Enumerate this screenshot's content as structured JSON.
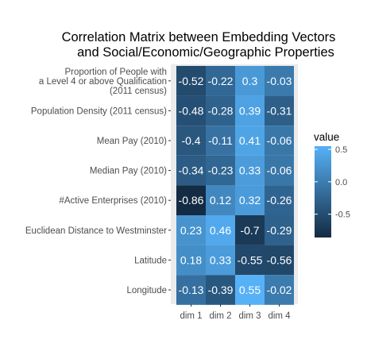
{
  "chart_data": {
    "type": "heatmap",
    "title_lines": [
      "Correlation Matrix between Embedding Vectors",
      "and Social/Economic/Geographic Properties"
    ],
    "x_categories": [
      "dim 1",
      "dim 2",
      "dim 3",
      "dim 4"
    ],
    "y_categories": [
      [
        "Proportion of People with",
        "a Level 4 or above Qualification",
        "(2011 census)"
      ],
      [
        "Population Density (2011 census)"
      ],
      [
        "Mean Pay (2010)"
      ],
      [
        "Median Pay (2010)"
      ],
      [
        "#Active Enterprises (2010)"
      ],
      [
        "Euclidean Distance to Westminster"
      ],
      [
        "Latitude"
      ],
      [
        "Longitude"
      ]
    ],
    "values": [
      [
        -0.52,
        -0.22,
        0.3,
        -0.03
      ],
      [
        -0.48,
        -0.28,
        0.39,
        -0.31
      ],
      [
        -0.4,
        -0.11,
        0.41,
        -0.06
      ],
      [
        -0.34,
        -0.23,
        0.33,
        -0.06
      ],
      [
        -0.86,
        0.12,
        0.32,
        -0.26
      ],
      [
        0.23,
        0.46,
        -0.7,
        -0.29
      ],
      [
        0.18,
        0.33,
        -0.55,
        -0.56
      ],
      [
        -0.13,
        -0.39,
        0.55,
        -0.02
      ]
    ],
    "cell_labels": [
      [
        "-0.52",
        "-0.22",
        "0.3",
        "-0.03"
      ],
      [
        "-0.48",
        "-0.28",
        "0.39",
        "-0.31"
      ],
      [
        "-0.4",
        "-0.11",
        "0.41",
        "-0.06"
      ],
      [
        "-0.34",
        "-0.23",
        "0.33",
        "-0.06"
      ],
      [
        "-0.86",
        "0.12",
        "0.32",
        "-0.26"
      ],
      [
        "0.23",
        "0.46",
        "-0.7",
        "-0.29"
      ],
      [
        "0.18",
        "0.33",
        "-0.55",
        "-0.56"
      ],
      [
        "-0.13",
        "-0.39",
        "0.55",
        "-0.02"
      ]
    ],
    "color_scale": {
      "low_color": "#132b43",
      "high_color": "#56b1f7",
      "domain": [
        -0.86,
        0.55
      ]
    },
    "legend": {
      "title": "value",
      "ticks": [
        0.5,
        0.0,
        -0.5
      ],
      "tick_labels": [
        "0.5",
        "0.0",
        "-0.5"
      ],
      "position": "right"
    },
    "panel_background": "#ebebeb"
  }
}
